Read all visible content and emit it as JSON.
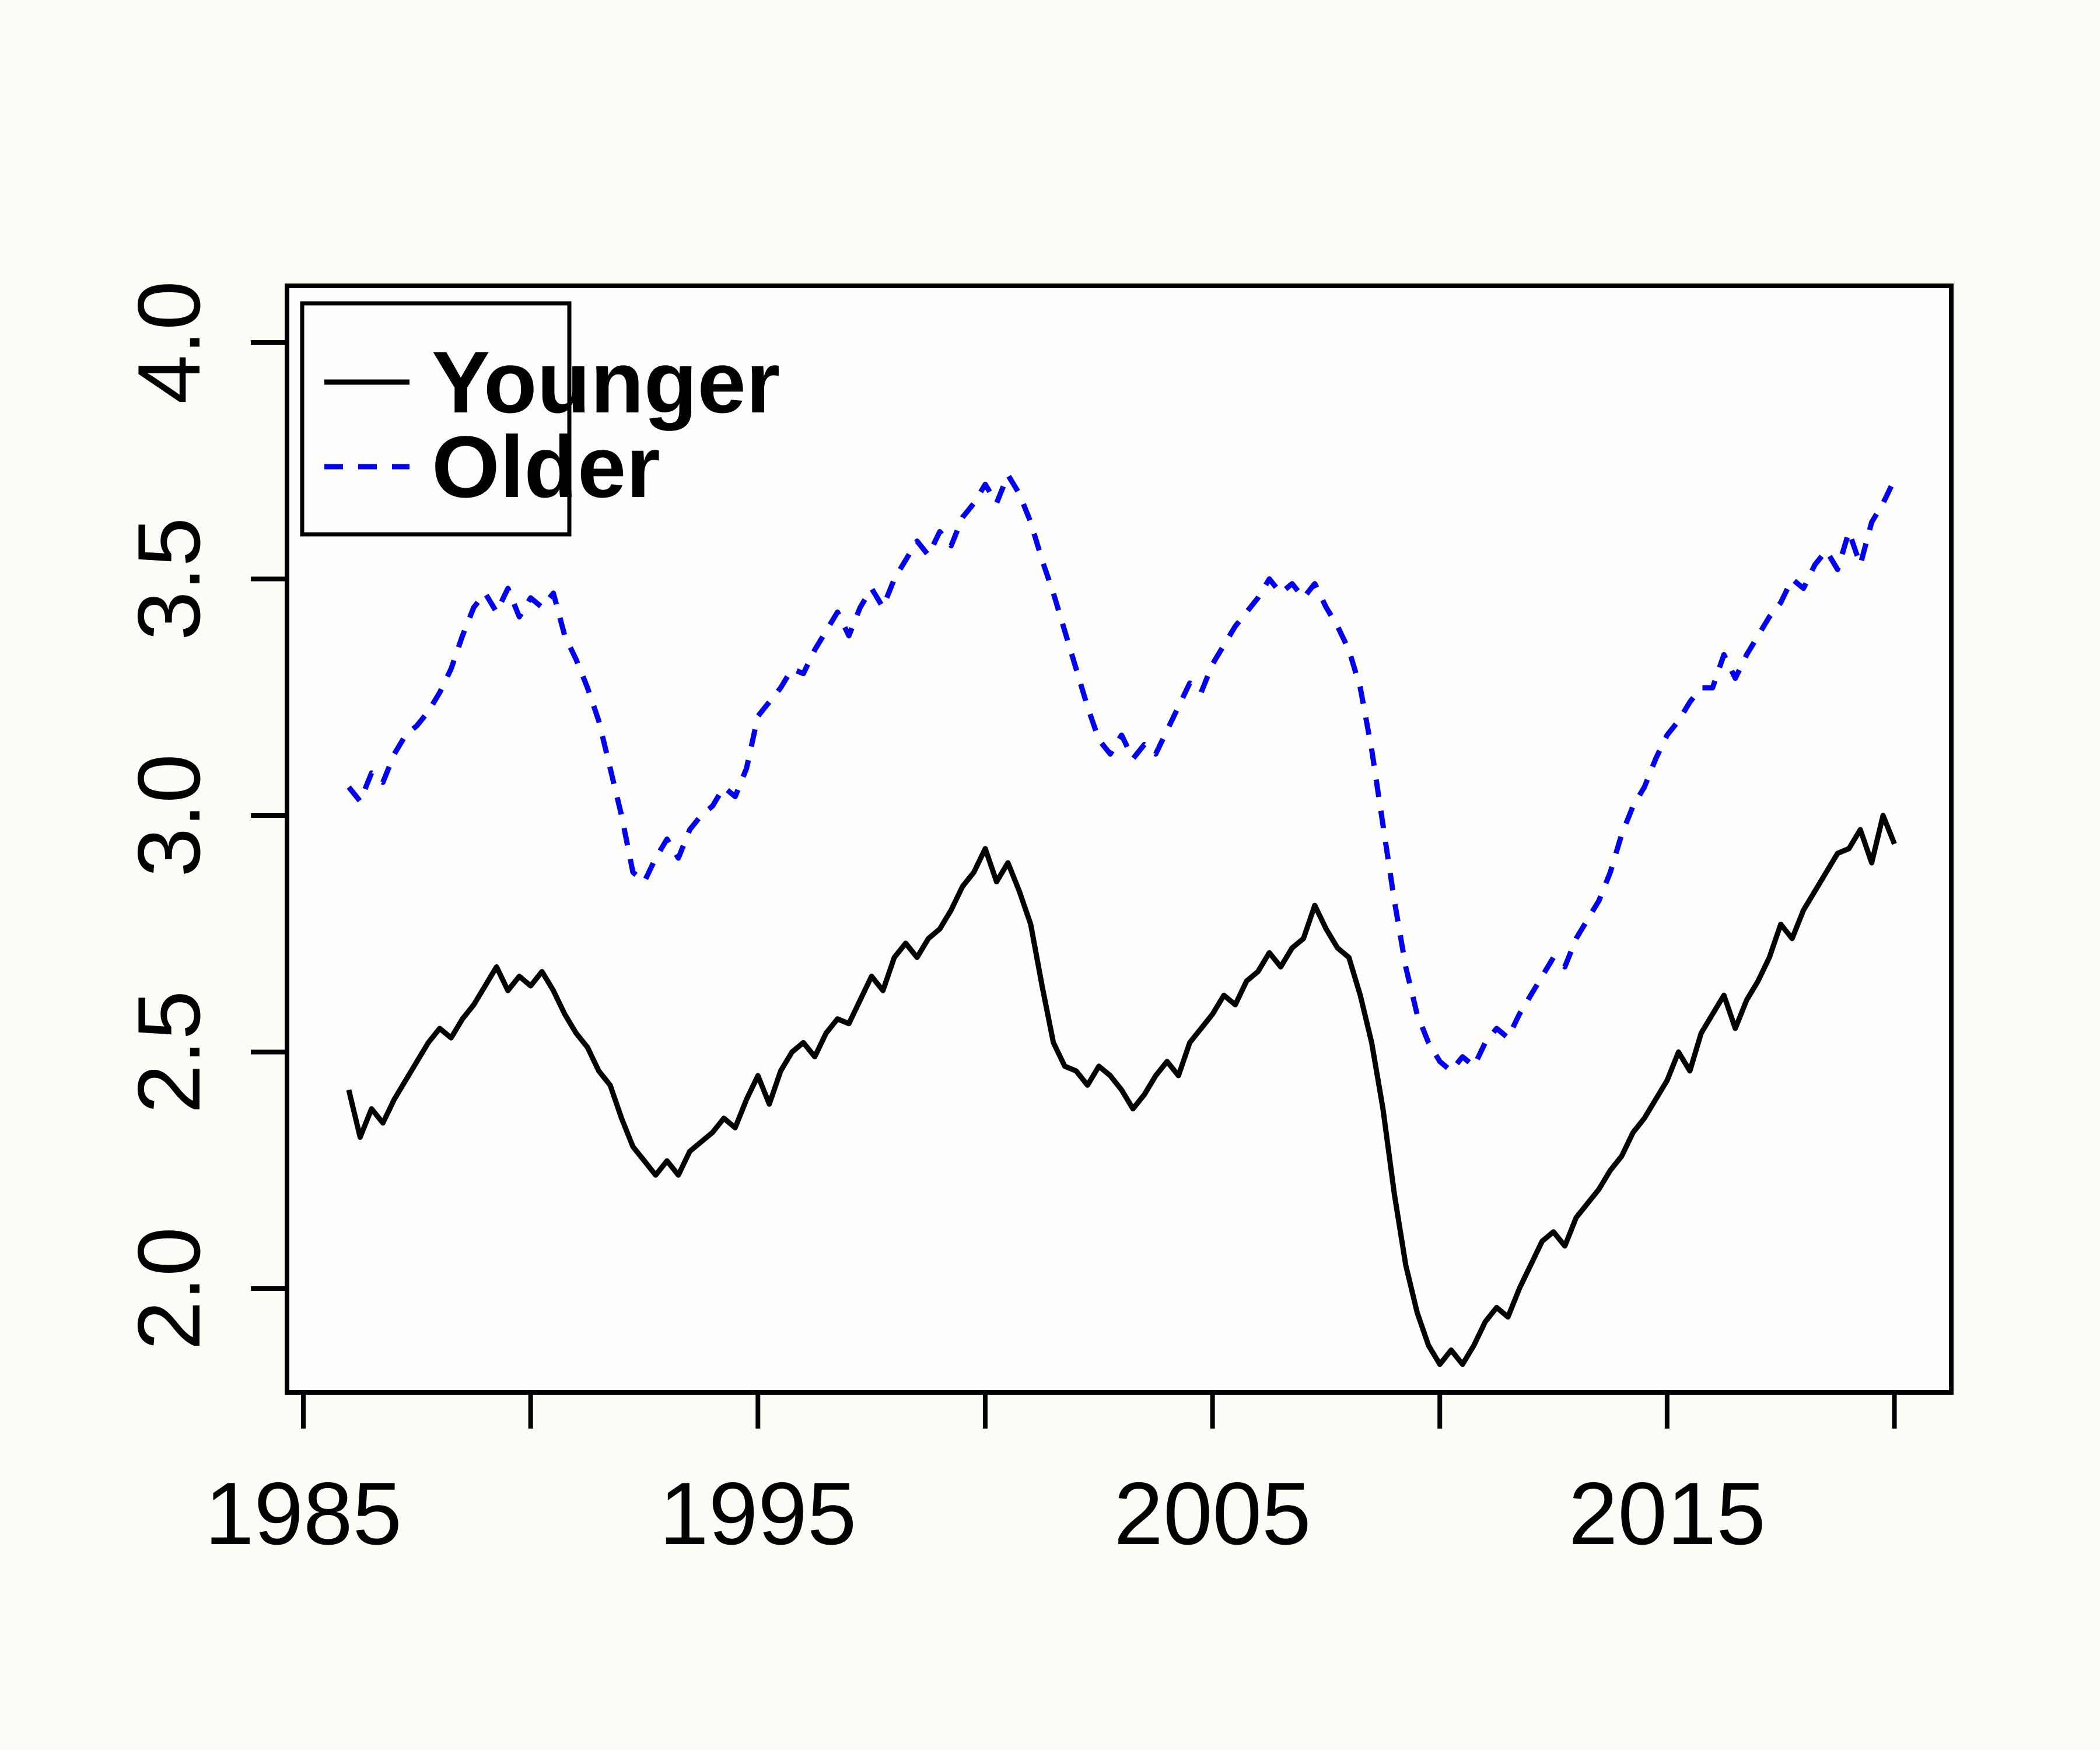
{
  "figure": {
    "background": "#fdfdf8",
    "plot_background": "#fefefc"
  },
  "chart_data": {
    "type": "line",
    "title": "",
    "xlabel": "",
    "ylabel": "",
    "grid": false,
    "xlim": [
      1984.64,
      2021.25
    ],
    "ylim": [
      1.78,
      4.12
    ],
    "x_axis": {
      "labeled_ticks": [
        {
          "value": 1985,
          "label": "1985"
        },
        {
          "value": 1995,
          "label": "1995"
        },
        {
          "value": 2005,
          "label": "2005"
        },
        {
          "value": 2015,
          "label": "2015"
        }
      ],
      "minor_ticks": [
        1990,
        2000,
        2010,
        2020
      ]
    },
    "y_axis": {
      "labeled_ticks": [
        {
          "value": 2.0,
          "label": "2.0"
        },
        {
          "value": 2.5,
          "label": "2.5"
        },
        {
          "value": 3.0,
          "label": "3.0"
        },
        {
          "value": 3.5,
          "label": "3.5"
        },
        {
          "value": 4.0,
          "label": "4.0"
        }
      ]
    },
    "legend": {
      "position": "topleft",
      "entries": [
        "Younger",
        "Older"
      ]
    },
    "x_start": 1986.0,
    "x_step": 0.25,
    "series": [
      {
        "name": "Younger",
        "color": "#000000",
        "line_style": "solid",
        "values": [
          2.42,
          2.32,
          2.38,
          2.35,
          2.4,
          2.44,
          2.48,
          2.52,
          2.55,
          2.53,
          2.57,
          2.6,
          2.64,
          2.68,
          2.63,
          2.66,
          2.64,
          2.67,
          2.63,
          2.58,
          2.54,
          2.51,
          2.46,
          2.43,
          2.36,
          2.3,
          2.27,
          2.24,
          2.27,
          2.24,
          2.29,
          2.31,
          2.33,
          2.36,
          2.34,
          2.4,
          2.45,
          2.39,
          2.46,
          2.5,
          2.52,
          2.49,
          2.54,
          2.57,
          2.56,
          2.61,
          2.66,
          2.63,
          2.7,
          2.73,
          2.7,
          2.74,
          2.76,
          2.8,
          2.85,
          2.88,
          2.93,
          2.86,
          2.9,
          2.84,
          2.77,
          2.64,
          2.52,
          2.47,
          2.46,
          2.43,
          2.47,
          2.45,
          2.42,
          2.38,
          2.41,
          2.45,
          2.48,
          2.45,
          2.52,
          2.55,
          2.58,
          2.62,
          2.6,
          2.65,
          2.67,
          2.71,
          2.68,
          2.72,
          2.74,
          2.81,
          2.76,
          2.72,
          2.7,
          2.62,
          2.52,
          2.38,
          2.2,
          2.05,
          1.95,
          1.88,
          1.84,
          1.87,
          1.84,
          1.88,
          1.93,
          1.96,
          1.94,
          2.0,
          2.05,
          2.1,
          2.12,
          2.09,
          2.15,
          2.18,
          2.21,
          2.25,
          2.28,
          2.33,
          2.36,
          2.4,
          2.44,
          2.5,
          2.46,
          2.54,
          2.58,
          2.62,
          2.55,
          2.61,
          2.65,
          2.7,
          2.77,
          2.74,
          2.8,
          2.84,
          2.88,
          2.92,
          2.93,
          2.97,
          2.9,
          3.0,
          2.94
        ]
      },
      {
        "name": "Older",
        "color": "#0000EE",
        "line_style": "dashed",
        "values": [
          3.06,
          3.03,
          3.09,
          3.07,
          3.13,
          3.17,
          3.19,
          3.22,
          3.26,
          3.31,
          3.38,
          3.44,
          3.47,
          3.43,
          3.48,
          3.42,
          3.46,
          3.44,
          3.47,
          3.38,
          3.33,
          3.27,
          3.2,
          3.1,
          3.0,
          2.88,
          2.86,
          2.91,
          2.95,
          2.91,
          2.97,
          3.0,
          3.02,
          3.06,
          3.04,
          3.1,
          3.21,
          3.24,
          3.27,
          3.31,
          3.3,
          3.35,
          3.39,
          3.43,
          3.38,
          3.44,
          3.48,
          3.44,
          3.5,
          3.54,
          3.58,
          3.55,
          3.6,
          3.57,
          3.63,
          3.66,
          3.7,
          3.66,
          3.72,
          3.68,
          3.62,
          3.54,
          3.47,
          3.39,
          3.31,
          3.23,
          3.16,
          3.13,
          3.17,
          3.12,
          3.15,
          3.13,
          3.18,
          3.23,
          3.28,
          3.26,
          3.32,
          3.36,
          3.4,
          3.43,
          3.46,
          3.5,
          3.47,
          3.49,
          3.46,
          3.49,
          3.44,
          3.4,
          3.35,
          3.27,
          3.14,
          2.98,
          2.82,
          2.68,
          2.58,
          2.52,
          2.48,
          2.46,
          2.49,
          2.47,
          2.52,
          2.55,
          2.53,
          2.58,
          2.62,
          2.66,
          2.7,
          2.68,
          2.74,
          2.78,
          2.82,
          2.88,
          2.96,
          3.02,
          3.06,
          3.12,
          3.17,
          3.2,
          3.24,
          3.27,
          3.27,
          3.34,
          3.29,
          3.34,
          3.38,
          3.42,
          3.45,
          3.5,
          3.48,
          3.53,
          3.56,
          3.52,
          3.6,
          3.53,
          3.62,
          3.66,
          3.71
        ]
      }
    ]
  }
}
